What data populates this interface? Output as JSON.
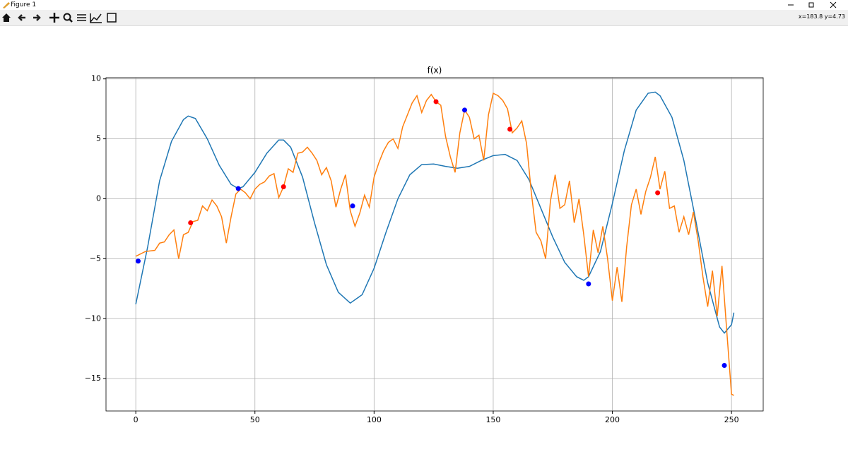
{
  "window": {
    "title": "Figure 1",
    "status": "x=183.8 y=4.73"
  },
  "chart_data": {
    "type": "line",
    "title": "f(x)",
    "xlim": [
      -12.5,
      263.3
    ],
    "ylim": [
      -17.7,
      10.1
    ],
    "xticks": [
      0,
      50,
      100,
      150,
      200,
      250
    ],
    "yticks": [
      10,
      5,
      0,
      {
        "value": -5,
        "label": "−5"
      },
      {
        "value": -10,
        "label": "−10"
      },
      {
        "value": -15,
        "label": "−15"
      }
    ],
    "grid": true,
    "series": [
      {
        "style": "line",
        "color": "#1f77b4",
        "x": [
          0,
          5,
          10,
          15,
          20,
          22,
          25,
          30,
          35,
          40,
          43,
          45,
          50,
          55,
          60,
          62,
          65,
          70,
          75,
          80,
          85,
          90,
          95,
          100,
          105,
          110,
          115,
          120,
          125,
          130,
          135,
          140,
          145,
          150,
          155,
          160,
          165,
          170,
          175,
          180,
          185,
          188,
          190,
          195,
          200,
          205,
          210,
          215,
          218,
          220,
          225,
          230,
          235,
          240,
          245,
          247,
          250,
          251
        ],
        "values": [
          -8.8,
          -4,
          1.5,
          4.8,
          6.6,
          6.9,
          6.7,
          5,
          2.8,
          1.2,
          0.85,
          1,
          2.2,
          3.8,
          4.9,
          4.9,
          4.3,
          1.8,
          -2,
          -5.5,
          -7.8,
          -8.7,
          -8,
          -5.8,
          -2.8,
          0,
          2,
          2.85,
          2.9,
          2.7,
          2.55,
          2.7,
          3.2,
          3.6,
          3.7,
          3.2,
          1.6,
          -0.8,
          -3.2,
          -5.3,
          -6.5,
          -6.8,
          -6.5,
          -4.4,
          -0.4,
          4,
          7.4,
          8.8,
          8.9,
          8.6,
          6.8,
          3.2,
          -1.8,
          -7,
          -10.7,
          -11.2,
          -10.5,
          -9.5
        ]
      },
      {
        "style": "line",
        "color": "#ff7f0e",
        "x": [
          0,
          4,
          8,
          10,
          12,
          14,
          16,
          18,
          20,
          22,
          24,
          26,
          28,
          30,
          32,
          34,
          36,
          38,
          40,
          42,
          44,
          46,
          48,
          50,
          52,
          54,
          56,
          58,
          60,
          62,
          64,
          66,
          68,
          70,
          72,
          74,
          76,
          78,
          80,
          82,
          84,
          86,
          88,
          90,
          92,
          94,
          96,
          98,
          100,
          102,
          104,
          106,
          108,
          110,
          112,
          114,
          116,
          118,
          120,
          122,
          124,
          126,
          128,
          130,
          132,
          134,
          136,
          138,
          140,
          142,
          144,
          146,
          148,
          150,
          152,
          154,
          156,
          158,
          160,
          162,
          164,
          166,
          168,
          170,
          172,
          174,
          176,
          178,
          180,
          182,
          184,
          186,
          188,
          190,
          192,
          194,
          196,
          198,
          200,
          202,
          204,
          206,
          208,
          210,
          212,
          214,
          216,
          218,
          220,
          222,
          224,
          226,
          228,
          230,
          232,
          234,
          236,
          238,
          240,
          242,
          244,
          246,
          248,
          250,
          251
        ],
        "values": [
          -4.8,
          -4.4,
          -4.3,
          -3.7,
          -3.6,
          -3,
          -2.6,
          -5,
          -3,
          -2.8,
          -1.9,
          -1.8,
          -0.6,
          -1,
          -0.1,
          -0.6,
          -1.5,
          -3.7,
          -1.5,
          0.4,
          0.8,
          0.5,
          0,
          0.8,
          1.2,
          1.4,
          1.9,
          2.1,
          0.1,
          1,
          2.5,
          2.2,
          3.8,
          3.9,
          4.3,
          3.8,
          3.2,
          2,
          2.6,
          1.5,
          -0.7,
          0.8,
          2,
          -1,
          -2.3,
          -1.2,
          0.3,
          -0.7,
          1.8,
          3,
          4,
          4.7,
          5,
          4.2,
          6,
          7,
          8,
          8.6,
          7.2,
          8.2,
          8.7,
          8.1,
          7.8,
          5.2,
          3.5,
          2.2,
          5.5,
          7.4,
          6.8,
          5,
          5.3,
          3.2,
          7,
          8.8,
          8.6,
          8.2,
          7.5,
          5.5,
          5.9,
          6.5,
          4.6,
          0.5,
          -2.8,
          -3.5,
          -5,
          -0.2,
          2,
          -0.8,
          -0.5,
          1.5,
          -2,
          0,
          -3,
          -6.5,
          -2.6,
          -4.5,
          -2.3,
          -5,
          -8.5,
          -5.7,
          -8.6,
          -4,
          -0.5,
          0.8,
          -1.3,
          0.6,
          1.8,
          3.5,
          0.8,
          2.3,
          -0.8,
          -0.6,
          -2.8,
          -1.5,
          -3,
          -1.1,
          -3.5,
          -6.5,
          -9,
          -6,
          -9.8,
          -5.6,
          -11,
          -16.3,
          -16.4
        ]
      },
      {
        "style": "points",
        "color": "blue",
        "x": [
          1,
          43,
          91,
          138,
          190,
          247
        ],
        "values": [
          -5.2,
          0.85,
          -0.6,
          7.4,
          -7.1,
          -13.9
        ]
      },
      {
        "style": "points",
        "color": "red",
        "x": [
          23,
          62,
          126,
          157,
          219
        ],
        "values": [
          -2,
          1,
          8.1,
          5.8,
          0.5
        ]
      }
    ]
  }
}
